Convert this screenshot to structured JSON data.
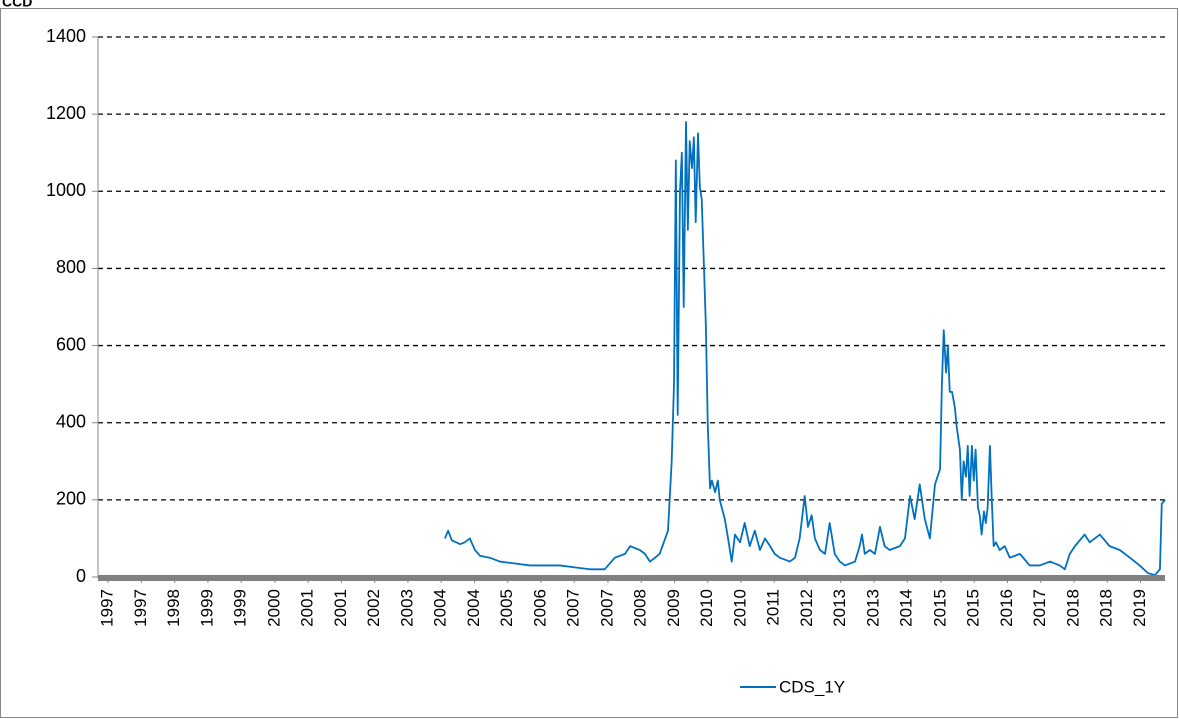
{
  "chart_data": {
    "type": "line",
    "title": "CCD",
    "xlim": [
      1996.8,
      2019.9
    ],
    "xticks": [
      {
        "value": 1997.02,
        "label": "1997"
      },
      {
        "value": 1997.74,
        "label": "1997"
      },
      {
        "value": 1998.46,
        "label": "1998"
      },
      {
        "value": 1999.18,
        "label": "1999"
      },
      {
        "value": 1999.9,
        "label": "1999"
      },
      {
        "value": 2000.63,
        "label": "2000"
      },
      {
        "value": 2001.35,
        "label": "2001"
      },
      {
        "value": 2002.07,
        "label": "2001"
      },
      {
        "value": 2002.79,
        "label": "2002"
      },
      {
        "value": 2003.51,
        "label": "2003"
      },
      {
        "value": 2004.23,
        "label": "2004"
      },
      {
        "value": 2004.95,
        "label": "2004"
      },
      {
        "value": 2005.67,
        "label": "2005"
      },
      {
        "value": 2006.39,
        "label": "2006"
      },
      {
        "value": 2007.11,
        "label": "2007"
      },
      {
        "value": 2007.84,
        "label": "2007"
      },
      {
        "value": 2008.56,
        "label": "2008"
      },
      {
        "value": 2009.28,
        "label": "2009"
      },
      {
        "value": 2010.0,
        "label": "2010"
      },
      {
        "value": 2010.72,
        "label": "2010"
      },
      {
        "value": 2011.44,
        "label": "2011"
      },
      {
        "value": 2012.16,
        "label": "2012"
      },
      {
        "value": 2012.88,
        "label": "2013"
      },
      {
        "value": 2013.6,
        "label": "2013"
      },
      {
        "value": 2014.32,
        "label": "2014"
      },
      {
        "value": 2015.05,
        "label": "2015"
      },
      {
        "value": 2015.77,
        "label": "2015"
      },
      {
        "value": 2016.49,
        "label": "2016"
      },
      {
        "value": 2017.21,
        "label": "2017"
      },
      {
        "value": 2017.93,
        "label": "2018"
      },
      {
        "value": 2018.65,
        "label": "2018"
      },
      {
        "value": 2019.37,
        "label": "2019"
      }
    ],
    "ylim": [
      0,
      1400
    ],
    "yticks": [
      0,
      200,
      400,
      600,
      800,
      1000,
      1200,
      1400
    ],
    "grid": true,
    "legend": "bottom",
    "x": [
      2004.31,
      2004.38,
      2004.46,
      2004.64,
      2004.74,
      2004.85,
      2004.96,
      2005.07,
      2005.28,
      2005.5,
      2005.83,
      2006.15,
      2006.48,
      2006.8,
      2007.12,
      2007.45,
      2007.77,
      2007.99,
      2008.21,
      2008.32,
      2008.53,
      2008.64,
      2008.75,
      2008.86,
      2008.96,
      2009.14,
      2009.22,
      2009.27,
      2009.31,
      2009.35,
      2009.4,
      2009.44,
      2009.48,
      2009.53,
      2009.57,
      2009.61,
      2009.66,
      2009.7,
      2009.74,
      2009.79,
      2009.83,
      2009.87,
      2009.92,
      2009.96,
      2010.0,
      2010.05,
      2010.09,
      2010.16,
      2010.22,
      2010.26,
      2010.37,
      2010.44,
      2010.52,
      2010.59,
      2010.7,
      2010.8,
      2010.91,
      2011.02,
      2011.13,
      2011.24,
      2011.35,
      2011.45,
      2011.56,
      2011.78,
      2011.89,
      2011.99,
      2012.1,
      2012.17,
      2012.25,
      2012.32,
      2012.43,
      2012.54,
      2012.64,
      2012.75,
      2012.86,
      2012.97,
      2013.19,
      2013.29,
      2013.34,
      2013.4,
      2013.51,
      2013.62,
      2013.73,
      2013.83,
      2013.94,
      2014.16,
      2014.27,
      2014.38,
      2014.48,
      2014.59,
      2014.7,
      2014.81,
      2014.92,
      2015.03,
      2015.07,
      2015.11,
      2015.16,
      2015.2,
      2015.24,
      2015.29,
      2015.35,
      2015.39,
      2015.46,
      2015.5,
      2015.54,
      2015.59,
      2015.63,
      2015.67,
      2015.72,
      2015.76,
      2015.8,
      2015.85,
      2015.89,
      2015.93,
      2015.98,
      2016.02,
      2016.06,
      2016.11,
      2016.15,
      2016.19,
      2016.24,
      2016.32,
      2016.43,
      2016.54,
      2016.76,
      2016.97,
      2017.19,
      2017.41,
      2017.62,
      2017.73,
      2017.84,
      2017.95,
      2018.16,
      2018.27,
      2018.49,
      2018.7,
      2018.92,
      2019.14,
      2019.35,
      2019.53,
      2019.68,
      2019.79,
      2019.83,
      2019.9
    ],
    "series": [
      {
        "name": "CDS_1Y",
        "color": "#0070c0",
        "values": [
          100,
          120,
          95,
          85,
          90,
          100,
          70,
          55,
          50,
          40,
          35,
          30,
          30,
          30,
          25,
          20,
          20,
          50,
          60,
          80,
          70,
          60,
          40,
          50,
          60,
          120,
          300,
          500,
          1080,
          420,
          1000,
          1100,
          700,
          1180,
          900,
          1130,
          1060,
          1140,
          920,
          1150,
          1010,
          980,
          800,
          650,
          400,
          230,
          250,
          220,
          250,
          200,
          150,
          100,
          40,
          110,
          90,
          140,
          80,
          120,
          70,
          100,
          80,
          60,
          50,
          40,
          50,
          100,
          210,
          130,
          160,
          100,
          70,
          60,
          140,
          60,
          40,
          30,
          40,
          80,
          110,
          60,
          70,
          60,
          130,
          80,
          70,
          80,
          100,
          210,
          150,
          240,
          150,
          100,
          240,
          280,
          500,
          640,
          530,
          600,
          480,
          480,
          440,
          390,
          330,
          200,
          300,
          260,
          340,
          210,
          340,
          250,
          330,
          180,
          160,
          110,
          170,
          140,
          180,
          340,
          200,
          80,
          90,
          70,
          80,
          50,
          60,
          30,
          30,
          40,
          30,
          20,
          60,
          80,
          110,
          90,
          110,
          80,
          70,
          50,
          30,
          10,
          5,
          20,
          190,
          200
        ]
      }
    ]
  }
}
